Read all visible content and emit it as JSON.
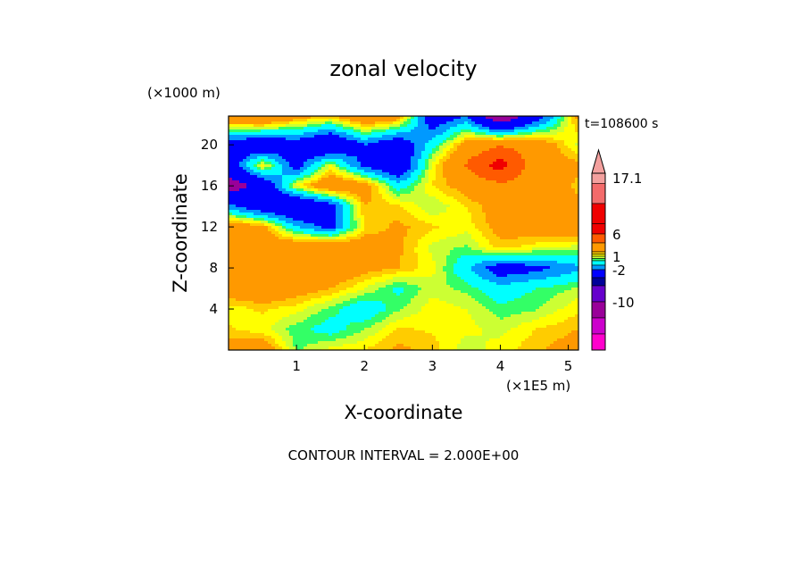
{
  "chart_data": {
    "type": "heatmap",
    "title": "zonal velocity",
    "xlabel": "X-coordinate",
    "ylabel": "Z-coordinate",
    "x_unit": "(×1E5 m)",
    "y_unit": "(×1000 m)",
    "xlim": [
      0,
      5.15
    ],
    "ylim": [
      0,
      22.8
    ],
    "x_ticks": [
      {
        "value": 1,
        "label": "1"
      },
      {
        "value": 2,
        "label": "2"
      },
      {
        "value": 3,
        "label": "3"
      },
      {
        "value": 4,
        "label": "4"
      },
      {
        "value": 5,
        "label": "5"
      }
    ],
    "y_ticks": [
      {
        "value": 4,
        "label": "4"
      },
      {
        "value": 8,
        "label": "8"
      },
      {
        "value": 12,
        "label": "12"
      },
      {
        "value": 16,
        "label": "16"
      },
      {
        "value": 20,
        "label": "20"
      }
    ],
    "time_label": "t=108600 s",
    "contour_interval_text": "CONTOUR INTERVAL = 2.000E+00",
    "colorbar": {
      "labels": [
        {
          "value": 17.1,
          "label": "17.1"
        },
        {
          "value": 6,
          "label": "6"
        },
        {
          "value": 1,
          "label": "1"
        },
        {
          "value": -2,
          "label": "-2"
        },
        {
          "value": -10,
          "label": "-10"
        }
      ],
      "bands": [
        {
          "lo": 16,
          "hi": 18,
          "color": "#f3a09e"
        },
        {
          "lo": 12,
          "hi": 16,
          "color": "#f36b6b"
        },
        {
          "lo": 8,
          "hi": 12,
          "color": "#f00000"
        },
        {
          "lo": 6,
          "hi": 8,
          "color": "#f00000"
        },
        {
          "lo": 4,
          "hi": 6,
          "color": "#ff5a00"
        },
        {
          "lo": 2,
          "hi": 4,
          "color": "#ff9900"
        },
        {
          "lo": 1.5,
          "hi": 2,
          "color": "#ffcc00"
        },
        {
          "lo": 1,
          "hi": 1.5,
          "color": "#ffff00"
        },
        {
          "lo": 0.5,
          "hi": 1,
          "color": "#ccff33"
        },
        {
          "lo": 0,
          "hi": 0.5,
          "color": "#33ff66"
        },
        {
          "lo": -1,
          "hi": 0,
          "color": "#00ffff"
        },
        {
          "lo": -2,
          "hi": -1,
          "color": "#0099ff"
        },
        {
          "lo": -4,
          "hi": -2,
          "color": "#0000ff"
        },
        {
          "lo": -6,
          "hi": -4,
          "color": "#000099"
        },
        {
          "lo": -10,
          "hi": -6,
          "color": "#6600cc"
        },
        {
          "lo": -14,
          "hi": -10,
          "color": "#990099"
        },
        {
          "lo": -18,
          "hi": -14,
          "color": "#cc00cc"
        },
        {
          "lo": -22,
          "hi": -18,
          "color": "#ff00cc"
        }
      ]
    },
    "field_levels": [
      {
        "lo": -99,
        "hi": -10,
        "color": "#6600cc"
      },
      {
        "lo": -10,
        "hi": -5,
        "color": "#990099"
      },
      {
        "lo": -5,
        "hi": -2,
        "color": "#0000ff"
      },
      {
        "lo": -2,
        "hi": -1,
        "color": "#0099ff"
      },
      {
        "lo": -1,
        "hi": 0,
        "color": "#00ffff"
      },
      {
        "lo": 0,
        "hi": 0.5,
        "color": "#33ff66"
      },
      {
        "lo": 0.5,
        "hi": 1,
        "color": "#ccff33"
      },
      {
        "lo": 1,
        "hi": 1.5,
        "color": "#ffff00"
      },
      {
        "lo": 1.5,
        "hi": 2,
        "color": "#ffcc00"
      },
      {
        "lo": 2,
        "hi": 4,
        "color": "#ff9900"
      },
      {
        "lo": 4,
        "hi": 6,
        "color": "#ff5a00"
      },
      {
        "lo": 6,
        "hi": 99,
        "color": "#f00000"
      }
    ],
    "field_grid": {
      "x": [
        0,
        0.5,
        1.0,
        1.5,
        2.0,
        2.5,
        3.0,
        3.5,
        4.0,
        4.5,
        5.15
      ],
      "z": [
        0,
        2,
        4,
        6,
        8,
        10,
        12,
        14,
        16,
        18,
        20,
        22.8
      ],
      "values": [
        [
          2.5,
          3.0,
          0.4,
          1.2,
          1.5,
          2.2,
          1.8,
          0.6,
          1.3,
          1.8,
          2.6
        ],
        [
          1.6,
          1.2,
          0.2,
          -0.4,
          0.5,
          1.6,
          1.4,
          1.2,
          0.8,
          1.5,
          2.0
        ],
        [
          1.2,
          1.6,
          1.2,
          0.3,
          -0.8,
          0.4,
          1.3,
          1.0,
          0.2,
          0.4,
          1.4
        ],
        [
          2.8,
          3.2,
          2.6,
          2.0,
          1.0,
          -0.2,
          0.8,
          0.3,
          -0.6,
          0.0,
          0.6
        ],
        [
          3.5,
          3.8,
          3.6,
          3.2,
          2.4,
          2.0,
          1.2,
          -0.8,
          -3.0,
          -2.5,
          -1.2
        ],
        [
          2.4,
          2.8,
          3.4,
          3.6,
          2.8,
          2.2,
          0.8,
          0.4,
          1.8,
          1.2,
          0.8
        ],
        [
          3.0,
          2.4,
          -1.0,
          -2.5,
          1.5,
          2.2,
          1.6,
          1.2,
          2.4,
          2.8,
          3.0
        ],
        [
          -1.5,
          -3.5,
          -4.5,
          -3.0,
          2.0,
          1.6,
          0.5,
          1.5,
          2.6,
          3.0,
          2.2
        ],
        [
          -6.5,
          -4.0,
          1.2,
          3.4,
          2.8,
          -0.5,
          1.5,
          2.5,
          3.5,
          3.0,
          1.8
        ],
        [
          -3.5,
          1.5,
          -2.8,
          1.0,
          -2.5,
          -4.0,
          1.2,
          4.2,
          7.0,
          3.0,
          2.2
        ],
        [
          -3.0,
          -4.0,
          -3.0,
          -4.5,
          -2.0,
          -3.5,
          -0.4,
          2.6,
          3.8,
          3.2,
          0.8
        ],
        [
          3.6,
          4.2,
          2.6,
          1.8,
          3.6,
          2.8,
          -3.5,
          -2.0,
          -7.5,
          -3.5,
          2.4
        ]
      ]
    }
  }
}
